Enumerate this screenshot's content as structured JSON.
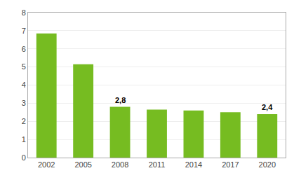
{
  "chart_data": {
    "type": "bar",
    "categories": [
      "2002",
      "2005",
      "2008",
      "2011",
      "2014",
      "2017",
      "2020"
    ],
    "values": [
      6.85,
      5.15,
      2.8,
      2.65,
      2.6,
      2.5,
      2.4
    ],
    "color": "#76BC21",
    "annotations": [
      {
        "category": "2008",
        "text": "2,8"
      },
      {
        "category": "2020",
        "text": "2,4"
      }
    ],
    "ylim": [
      0,
      8
    ],
    "yticks": [
      0,
      1,
      2,
      3,
      4,
      5,
      6,
      7,
      8
    ],
    "grid": true
  }
}
